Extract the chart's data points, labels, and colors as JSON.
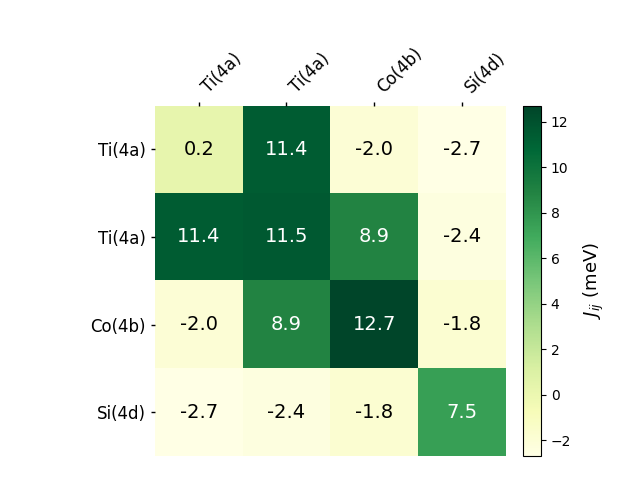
{
  "matrix": [
    [
      0.2,
      11.4,
      -2.0,
      -2.7
    ],
    [
      11.4,
      11.5,
      8.9,
      -2.4
    ],
    [
      -2.0,
      8.9,
      12.7,
      -1.8
    ],
    [
      -2.7,
      -2.4,
      -1.8,
      7.5
    ]
  ],
  "row_labels": [
    "Ti(4a)",
    "Ti(4a)",
    "Co(4b)",
    "Si(4d)"
  ],
  "col_labels": [
    "Ti(4a)",
    "Ti(4a)",
    "Co(4b)",
    "Si(4d)"
  ],
  "colorbar_label": "$J_{ij}$ (meV)",
  "vmin": -2.7,
  "vmax": 12.7,
  "cmap": "YlGn",
  "colorbar_ticks": [
    -2,
    0,
    2,
    4,
    6,
    8,
    10,
    12
  ],
  "text_threshold": 5.0,
  "annotation_fontsize": 14,
  "tick_fontsize": 12
}
